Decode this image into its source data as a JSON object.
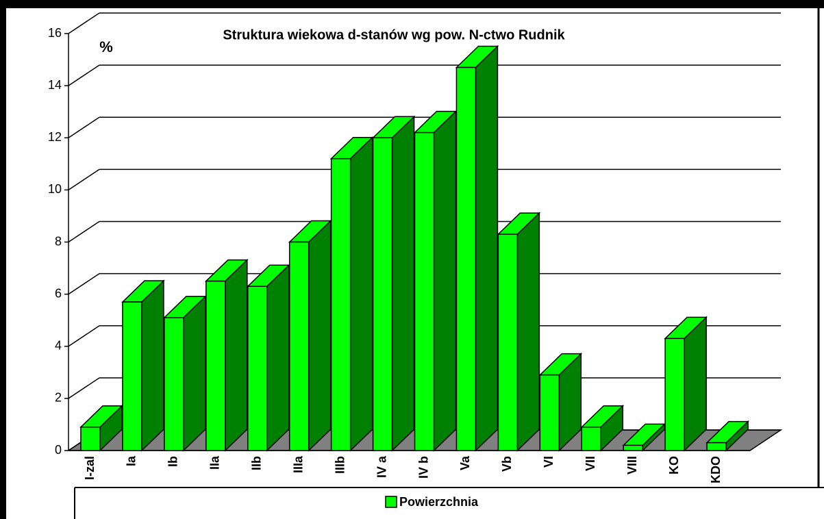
{
  "chart_data": {
    "type": "bar3d",
    "title": "Struktura wiekowa d-stanów wg pow. N-ctwo Rudnik",
    "y_label": "%",
    "categories": [
      "I-zal",
      "Ia",
      "Ib",
      "IIa",
      "IIb",
      "IIIa",
      "IIIb",
      "IV a",
      "IV b",
      "Va",
      "Vb",
      "VI",
      "VII",
      "VIII",
      "KO",
      "KDO"
    ],
    "series": [
      {
        "name": "Powierzchnia",
        "color": "#00ff00",
        "values": [
          0.9,
          5.7,
          5.1,
          6.5,
          6.3,
          8.0,
          11.2,
          12.0,
          12.2,
          14.7,
          8.3,
          2.9,
          0.9,
          0.2,
          4.3,
          0.3
        ]
      }
    ],
    "ylim": [
      0,
      16
    ],
    "yticks": [
      0,
      2,
      4,
      6,
      8,
      10,
      12,
      14,
      16
    ],
    "grid": true,
    "legend": "bottom"
  }
}
